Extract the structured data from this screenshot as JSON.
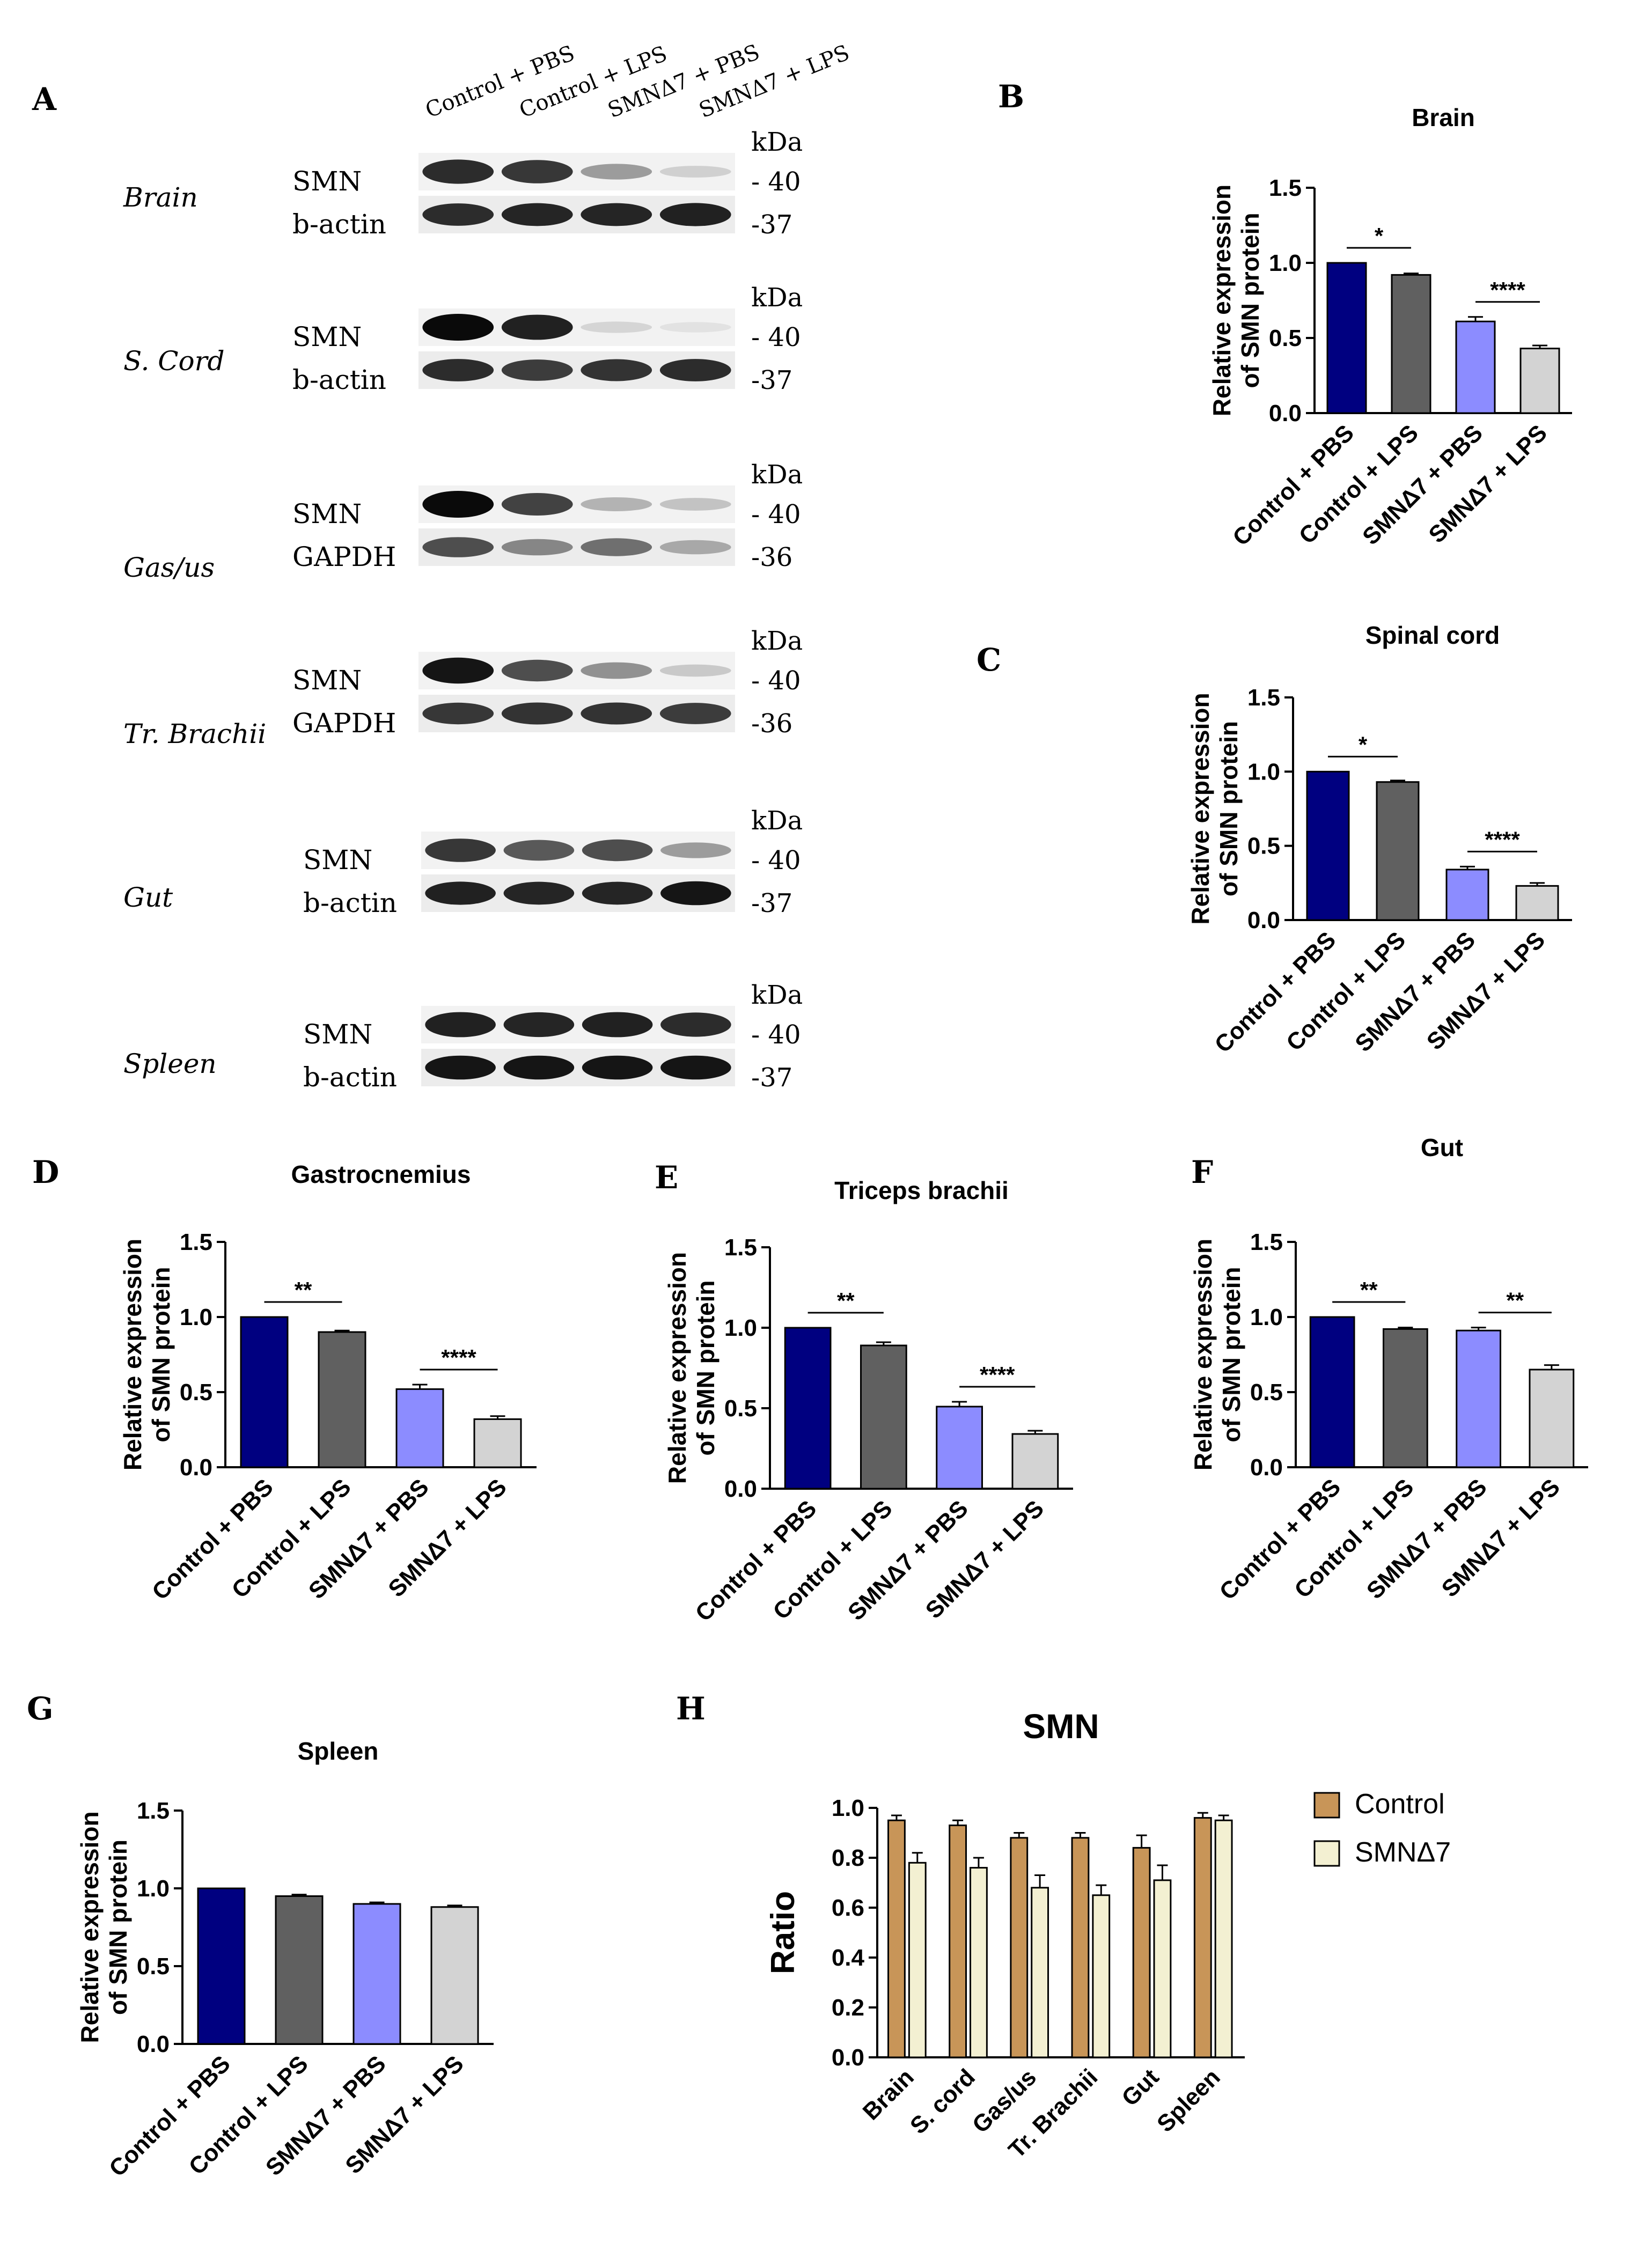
{
  "blot": {
    "panel_letter": "A",
    "lanes": [
      "Control + PBS",
      "Control + LPS",
      "SMNΔ7 + PBS",
      "SMNΔ7 + LPS"
    ],
    "kda_label": "kDa",
    "tissues": [
      {
        "name": "Brain",
        "top_label": "SMN",
        "bottom_label": "b-actin",
        "top_mw": "- 40",
        "bottom_mw": "-37",
        "top_intensity": [
          0.85,
          0.8,
          0.35,
          0.12
        ],
        "bottom_intensity": [
          0.85,
          0.88,
          0.88,
          0.9
        ]
      },
      {
        "name": "S. Cord",
        "top_label": "SMN",
        "bottom_label": "b-actin",
        "top_mw": "- 40",
        "bottom_mw": "-37",
        "top_intensity": [
          1.0,
          0.9,
          0.1,
          0.04
        ],
        "bottom_intensity": [
          0.85,
          0.78,
          0.82,
          0.85
        ]
      },
      {
        "name": "Gas/us",
        "top_label": "SMN",
        "bottom_label": "GAPDH",
        "top_mw": "- 40",
        "bottom_mw": "-36",
        "top_intensity": [
          1.0,
          0.75,
          0.25,
          0.18
        ],
        "bottom_intensity": [
          0.7,
          0.45,
          0.55,
          0.3
        ]
      },
      {
        "name": "Tr. Brachii",
        "top_label": "SMN",
        "bottom_label": "GAPDH",
        "top_mw": "- 40",
        "bottom_mw": "-36",
        "top_intensity": [
          0.95,
          0.7,
          0.4,
          0.15
        ],
        "bottom_intensity": [
          0.8,
          0.82,
          0.82,
          0.78
        ]
      },
      {
        "name": "Gut",
        "top_label": "SMN",
        "bottom_label": "b-actin",
        "top_mw": "- 40",
        "bottom_mw": "-37",
        "top_intensity": [
          0.8,
          0.65,
          0.7,
          0.35
        ],
        "bottom_intensity": [
          0.9,
          0.88,
          0.88,
          0.95
        ]
      },
      {
        "name": "Spleen",
        "top_label": "SMN",
        "bottom_label": "b-actin",
        "top_mw": "- 40",
        "bottom_mw": "-37",
        "top_intensity": [
          0.9,
          0.88,
          0.9,
          0.85
        ],
        "bottom_intensity": [
          0.95,
          0.95,
          0.95,
          0.95
        ]
      }
    ]
  },
  "chart_data": [
    {
      "panel": "B",
      "type": "bar",
      "title": "Brain",
      "ylabel": [
        "Relative expression",
        "of SMN protein"
      ],
      "categories": [
        "Control + PBS",
        "Control + LPS",
        "SMNΔ7 + PBS",
        "SMNΔ7 + LPS"
      ],
      "values": [
        1.0,
        0.92,
        0.61,
        0.43
      ],
      "errors": [
        0.0,
        0.01,
        0.03,
        0.02
      ],
      "colors": [
        "#000080",
        "#606060",
        "#8c8cff",
        "#d3d3d3"
      ],
      "ylim": [
        0,
        1.5
      ],
      "yticks": [
        "0.0",
        "0.5",
        "1.0",
        "1.5"
      ],
      "significance": [
        {
          "from": 0,
          "to": 1,
          "label": "*"
        },
        {
          "from": 2,
          "to": 3,
          "label": "****"
        }
      ]
    },
    {
      "panel": "C",
      "type": "bar",
      "title": "Spinal cord",
      "ylabel": [
        "Relative expression",
        "of SMN protein"
      ],
      "categories": [
        "Control + PBS",
        "Control + LPS",
        "SMNΔ7 + PBS",
        "SMNΔ7 + LPS"
      ],
      "values": [
        1.0,
        0.93,
        0.34,
        0.23
      ],
      "errors": [
        0.0,
        0.01,
        0.02,
        0.02
      ],
      "colors": [
        "#000080",
        "#606060",
        "#8c8cff",
        "#d3d3d3"
      ],
      "ylim": [
        0,
        1.5
      ],
      "yticks": [
        "0.0",
        "0.5",
        "1.0",
        "1.5"
      ],
      "significance": [
        {
          "from": 0,
          "to": 1,
          "label": "*"
        },
        {
          "from": 2,
          "to": 3,
          "label": "****"
        }
      ]
    },
    {
      "panel": "D",
      "type": "bar",
      "title": "Gastrocnemius",
      "ylabel": [
        "Relative expression",
        "of SMN protein"
      ],
      "categories": [
        "Control + PBS",
        "Control + LPS",
        "SMNΔ7 + PBS",
        "SMNΔ7 + LPS"
      ],
      "values": [
        1.0,
        0.9,
        0.52,
        0.32
      ],
      "errors": [
        0.0,
        0.01,
        0.03,
        0.02
      ],
      "colors": [
        "#000080",
        "#606060",
        "#8c8cff",
        "#d3d3d3"
      ],
      "ylim": [
        0,
        1.5
      ],
      "yticks": [
        "0.0",
        "0.5",
        "1.0",
        "1.5"
      ],
      "significance": [
        {
          "from": 0,
          "to": 1,
          "label": "**"
        },
        {
          "from": 2,
          "to": 3,
          "label": "****"
        }
      ]
    },
    {
      "panel": "E",
      "type": "bar",
      "title": "Triceps brachii",
      "ylabel": [
        "Relative expression",
        "of SMN protein"
      ],
      "categories": [
        "Control + PBS",
        "Control + LPS",
        "SMNΔ7 + PBS",
        "SMNΔ7 + LPS"
      ],
      "values": [
        1.0,
        0.89,
        0.51,
        0.34
      ],
      "errors": [
        0.0,
        0.02,
        0.03,
        0.02
      ],
      "colors": [
        "#000080",
        "#606060",
        "#8c8cff",
        "#d3d3d3"
      ],
      "ylim": [
        0,
        1.5
      ],
      "yticks": [
        "0.0",
        "0.5",
        "1.0",
        "1.5"
      ],
      "significance": [
        {
          "from": 0,
          "to": 1,
          "label": "**"
        },
        {
          "from": 2,
          "to": 3,
          "label": "****"
        }
      ]
    },
    {
      "panel": "F",
      "type": "bar",
      "title": "Gut",
      "ylabel": [
        "Relative expression",
        "of SMN protein"
      ],
      "categories": [
        "Control + PBS",
        "Control + LPS",
        "SMNΔ7 + PBS",
        "SMNΔ7 + LPS"
      ],
      "values": [
        1.0,
        0.92,
        0.91,
        0.65
      ],
      "errors": [
        0.0,
        0.01,
        0.02,
        0.03
      ],
      "colors": [
        "#000080",
        "#606060",
        "#8c8cff",
        "#d3d3d3"
      ],
      "ylim": [
        0,
        1.5
      ],
      "yticks": [
        "0.0",
        "0.5",
        "1.0",
        "1.5"
      ],
      "significance": [
        {
          "from": 0,
          "to": 1,
          "label": "**"
        },
        {
          "from": 2,
          "to": 3,
          "label": "**"
        }
      ]
    },
    {
      "panel": "G",
      "type": "bar",
      "title": "Spleen",
      "ylabel": [
        "Relative expression",
        "of SMN protein"
      ],
      "categories": [
        "Control + PBS",
        "Control + LPS",
        "SMNΔ7 + PBS",
        "SMNΔ7 + LPS"
      ],
      "values": [
        1.0,
        0.95,
        0.9,
        0.88
      ],
      "errors": [
        0.0,
        0.01,
        0.01,
        0.01
      ],
      "colors": [
        "#000080",
        "#606060",
        "#8c8cff",
        "#d3d3d3"
      ],
      "ylim": [
        0,
        1.5
      ],
      "yticks": [
        "0.0",
        "0.5",
        "1.0",
        "1.5"
      ],
      "significance": []
    },
    {
      "panel": "H",
      "type": "bar",
      "title": "SMN",
      "ylabel": [
        "Ratio"
      ],
      "categories": [
        "Brain",
        "S. cord",
        "Gas/us",
        "Tr. Brachii",
        "Gut",
        "Spleen"
      ],
      "series": [
        {
          "name": "Control",
          "color": "#c89558",
          "values": [
            0.95,
            0.93,
            0.88,
            0.88,
            0.84,
            0.96
          ],
          "errors": [
            0.02,
            0.02,
            0.02,
            0.02,
            0.05,
            0.02
          ]
        },
        {
          "name": "SMNΔ7",
          "color": "#f3f0d2",
          "values": [
            0.78,
            0.76,
            0.68,
            0.65,
            0.71,
            0.95
          ],
          "errors": [
            0.04,
            0.04,
            0.05,
            0.04,
            0.06,
            0.02
          ]
        }
      ],
      "ylim": [
        0,
        1.0
      ],
      "yticks": [
        "0.0",
        "0.2",
        "0.4",
        "0.6",
        "0.8",
        "1.0"
      ],
      "legend": "right"
    }
  ]
}
